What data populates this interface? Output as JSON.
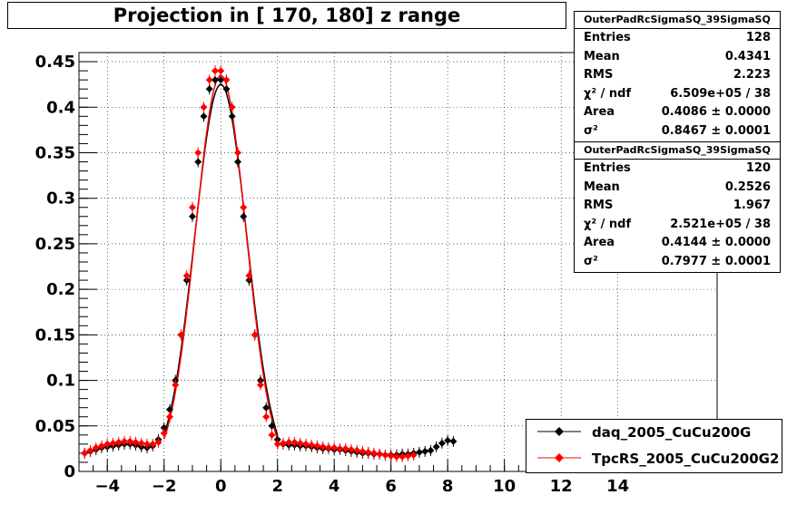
{
  "title": "Projection in [ 170, 180] z range",
  "stats": [
    {
      "name": "OuterPadRcSigmaSQ_39SigmaSQ",
      "rows": [
        {
          "label": "Entries",
          "value": "128"
        },
        {
          "label": "Mean",
          "value": "0.4341"
        },
        {
          "label": "RMS",
          "value": "2.223"
        },
        {
          "label": "χ² / ndf",
          "value": "6.509e+05 / 38"
        },
        {
          "label": "Area",
          "value": "0.4086 ± 0.0000"
        },
        {
          "label": "σ²",
          "value": "0.8467 ± 0.0001"
        }
      ]
    },
    {
      "name": "OuterPadRcSigmaSQ_39SigmaSQ",
      "rows": [
        {
          "label": "Entries",
          "value": "120"
        },
        {
          "label": "Mean",
          "value": "0.2526"
        },
        {
          "label": "RMS",
          "value": "1.967"
        },
        {
          "label": "χ² / ndf",
          "value": "2.521e+05 / 38"
        },
        {
          "label": "Area",
          "value": "0.4144 ± 0.0000"
        },
        {
          "label": "σ²",
          "value": "0.7977 ± 0.0001"
        }
      ]
    }
  ],
  "legend": [
    {
      "label": "daq_2005_CuCu200G",
      "color": "#000000"
    },
    {
      "label": "TpcRS_2005_CuCu200G2",
      "color": "#ff0000"
    }
  ],
  "chart_data": {
    "type": "scatter",
    "xlim": [
      -5,
      17.5
    ],
    "ylim": [
      0,
      0.46
    ],
    "x_ticks": [
      -4,
      -2,
      0,
      2,
      4,
      6,
      8,
      10,
      12,
      14
    ],
    "x_tick_labels": [
      "−4",
      "−2",
      "0",
      "2",
      "4",
      "6",
      "8",
      "10",
      "12",
      "14"
    ],
    "y_ticks": [
      0,
      0.05,
      0.1,
      0.15,
      0.2,
      0.25,
      0.3,
      0.35,
      0.4,
      0.45
    ],
    "y_tick_labels": [
      "0",
      "0.05",
      "0.1",
      "0.15",
      "0.2",
      "0.25",
      "0.3",
      "0.35",
      "0.4",
      "0.45"
    ],
    "grid": true,
    "legend_position": "bottom-right",
    "series": [
      {
        "name": "daq_2005_CuCu200G",
        "color": "#000000",
        "x": [
          -4.8,
          -4.6,
          -4.4,
          -4.2,
          -4.0,
          -3.8,
          -3.6,
          -3.4,
          -3.2,
          -3.0,
          -2.8,
          -2.6,
          -2.4,
          -2.2,
          -2.0,
          -1.8,
          -1.6,
          -1.4,
          -1.2,
          -1.0,
          -0.8,
          -0.6,
          -0.4,
          -0.2,
          0.0,
          0.2,
          0.4,
          0.6,
          0.8,
          1.0,
          1.2,
          1.4,
          1.6,
          1.8,
          2.0,
          2.2,
          2.4,
          2.6,
          2.8,
          3.0,
          3.2,
          3.4,
          3.6,
          3.8,
          4.0,
          4.2,
          4.4,
          4.6,
          4.8,
          5.0,
          5.2,
          5.4,
          5.6,
          5.8,
          6.0,
          6.2,
          6.4,
          6.6,
          6.8,
          7.0,
          7.2,
          7.4,
          7.6,
          7.8,
          8.0,
          8.2
        ],
        "y": [
          0.02,
          0.022,
          0.024,
          0.026,
          0.027,
          0.028,
          0.029,
          0.03,
          0.03,
          0.029,
          0.027,
          0.026,
          0.028,
          0.035,
          0.048,
          0.068,
          0.1,
          0.15,
          0.21,
          0.28,
          0.34,
          0.39,
          0.42,
          0.43,
          0.43,
          0.42,
          0.39,
          0.34,
          0.28,
          0.21,
          0.15,
          0.1,
          0.07,
          0.05,
          0.035,
          0.03,
          0.029,
          0.029,
          0.028,
          0.028,
          0.027,
          0.026,
          0.025,
          0.025,
          0.024,
          0.024,
          0.023,
          0.022,
          0.021,
          0.02,
          0.02,
          0.019,
          0.019,
          0.018,
          0.018,
          0.018,
          0.019,
          0.019,
          0.02,
          0.021,
          0.022,
          0.023,
          0.027,
          0.031,
          0.034,
          0.033
        ]
      },
      {
        "name": "TpcRS_2005_CuCu200G2",
        "color": "#ff0000",
        "x": [
          -4.8,
          -4.6,
          -4.4,
          -4.2,
          -4.0,
          -3.8,
          -3.6,
          -3.4,
          -3.2,
          -3.0,
          -2.8,
          -2.6,
          -2.4,
          -2.2,
          -2.0,
          -1.8,
          -1.6,
          -1.4,
          -1.2,
          -1.0,
          -0.8,
          -0.6,
          -0.4,
          -0.2,
          0.0,
          0.2,
          0.4,
          0.6,
          0.8,
          1.0,
          1.2,
          1.4,
          1.6,
          1.8,
          2.0,
          2.2,
          2.4,
          2.6,
          2.8,
          3.0,
          3.2,
          3.4,
          3.6,
          3.8,
          4.0,
          4.2,
          4.4,
          4.6,
          4.8,
          5.0,
          5.2,
          5.4,
          5.6,
          5.8,
          6.0,
          6.2,
          6.4,
          6.6,
          6.8
        ],
        "y": [
          0.02,
          0.023,
          0.026,
          0.028,
          0.03,
          0.031,
          0.032,
          0.033,
          0.033,
          0.032,
          0.031,
          0.03,
          0.03,
          0.032,
          0.042,
          0.06,
          0.095,
          0.15,
          0.215,
          0.29,
          0.35,
          0.4,
          0.43,
          0.44,
          0.44,
          0.43,
          0.4,
          0.35,
          0.29,
          0.215,
          0.15,
          0.095,
          0.06,
          0.04,
          0.03,
          0.031,
          0.032,
          0.032,
          0.031,
          0.03,
          0.029,
          0.028,
          0.027,
          0.026,
          0.026,
          0.025,
          0.025,
          0.024,
          0.023,
          0.022,
          0.021,
          0.02,
          0.019,
          0.018,
          0.017,
          0.016,
          0.016,
          0.017,
          0.018
        ]
      }
    ]
  }
}
